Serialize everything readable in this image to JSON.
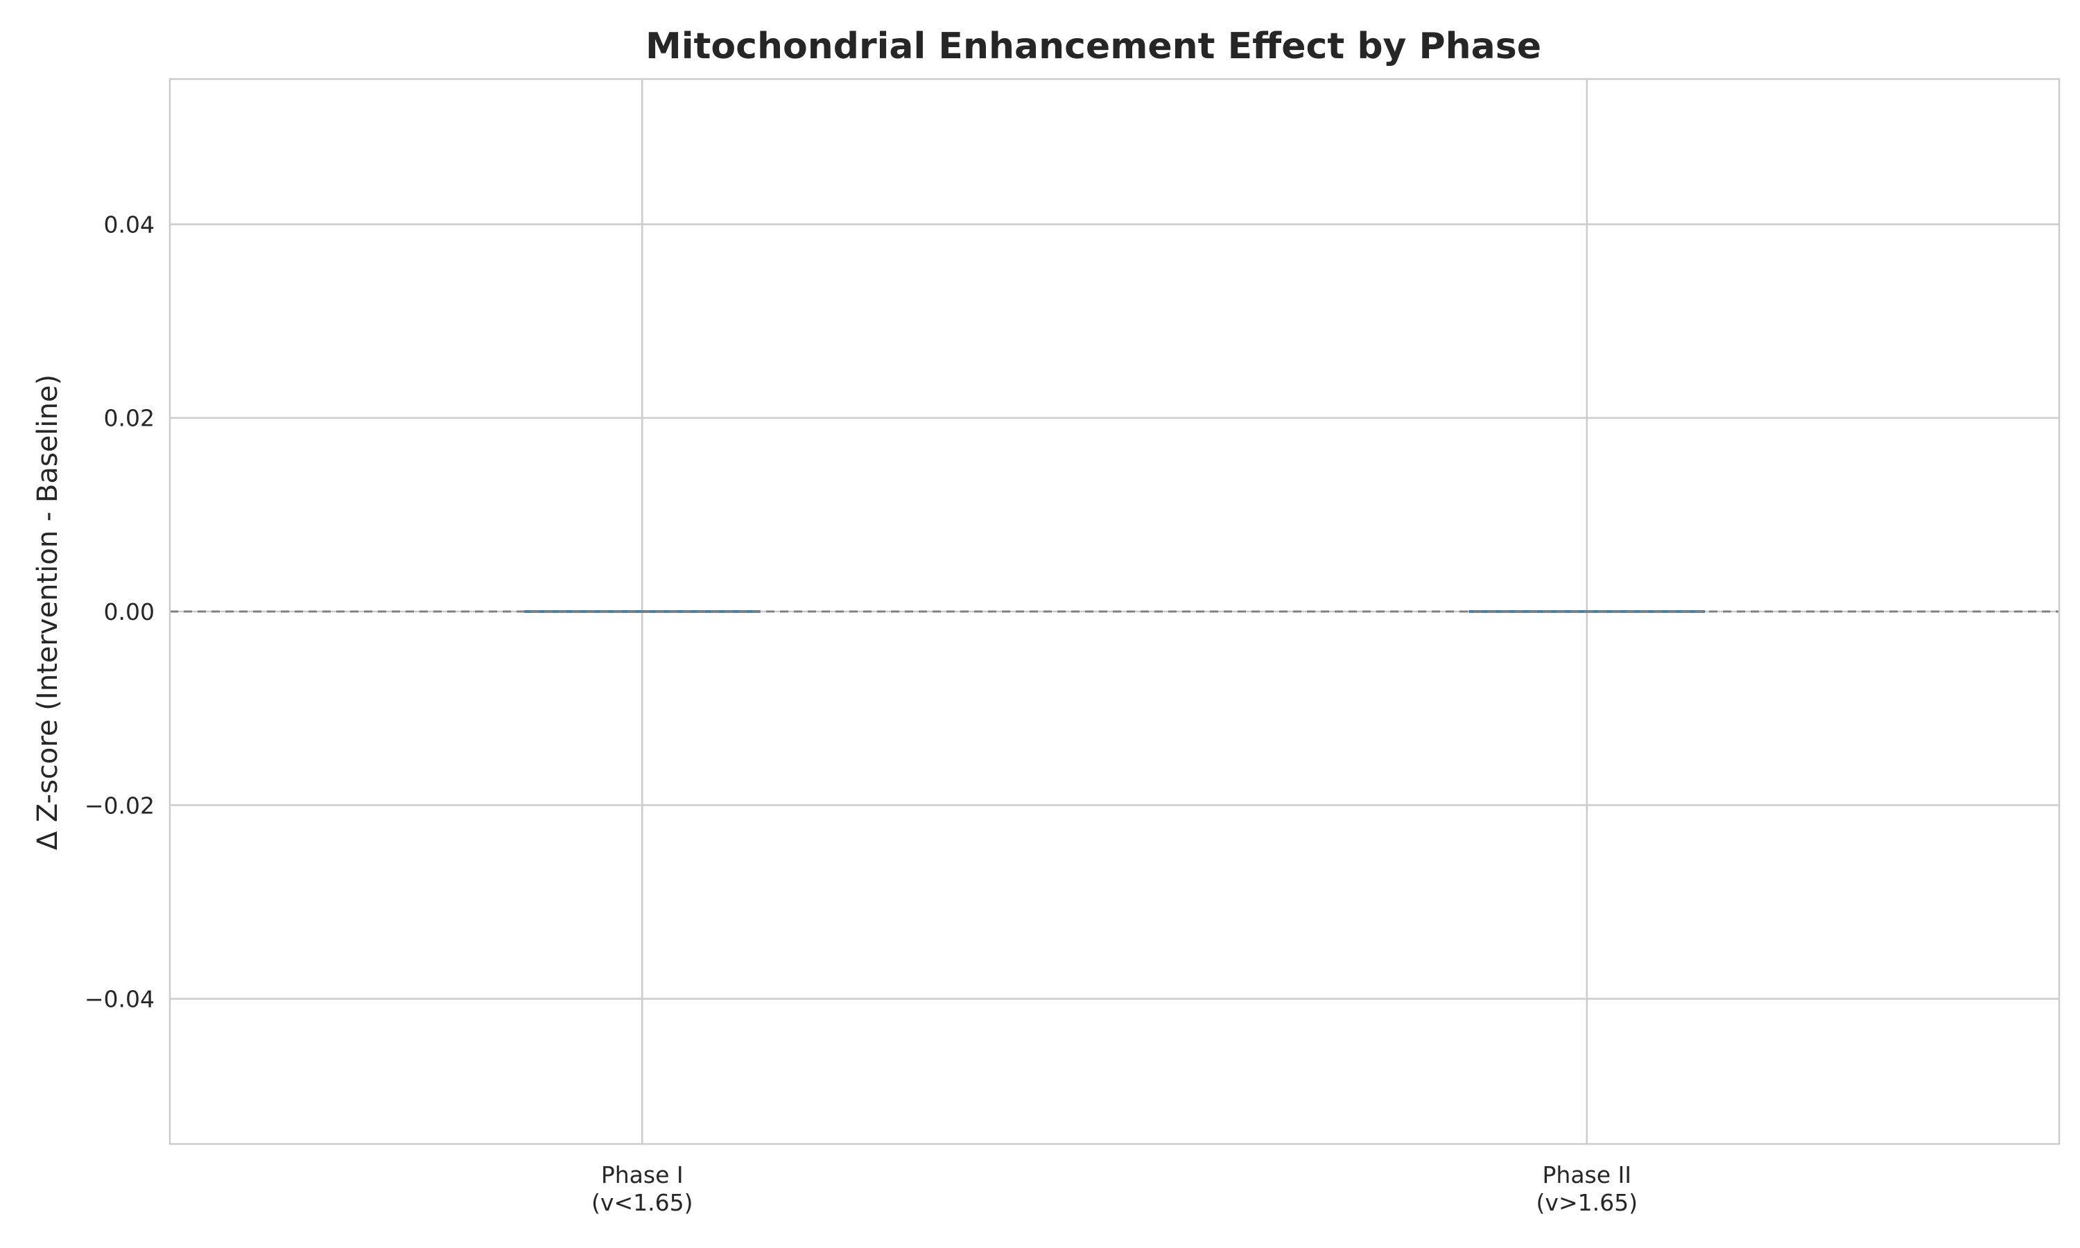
{
  "chart_data": {
    "type": "bar",
    "title": "Mitochondrial Enhancement Effect by Phase",
    "xlabel": "",
    "ylabel": "Δ Z-score (Intervention - Baseline)",
    "categories": [
      [
        "Phase I",
        "(v<1.65)"
      ],
      [
        "Phase II",
        "(v>1.65)"
      ]
    ],
    "values": [
      0.0,
      0.0
    ],
    "ylim": [
      -0.055,
      0.055
    ],
    "yticks": [
      -0.04,
      -0.02,
      0.0,
      0.02,
      0.04
    ],
    "ytick_labels": [
      "−0.04",
      "−0.02",
      "0.00",
      "0.02",
      "0.04"
    ],
    "reference_line": {
      "y": 0.0,
      "style": "dashed"
    },
    "grid": true,
    "legend": "none",
    "colors": {
      "bar": "#4a7fa0",
      "grid": "#cccccc",
      "spine": "#cccccc",
      "reference_line": "#808080",
      "text": "#262626"
    }
  }
}
